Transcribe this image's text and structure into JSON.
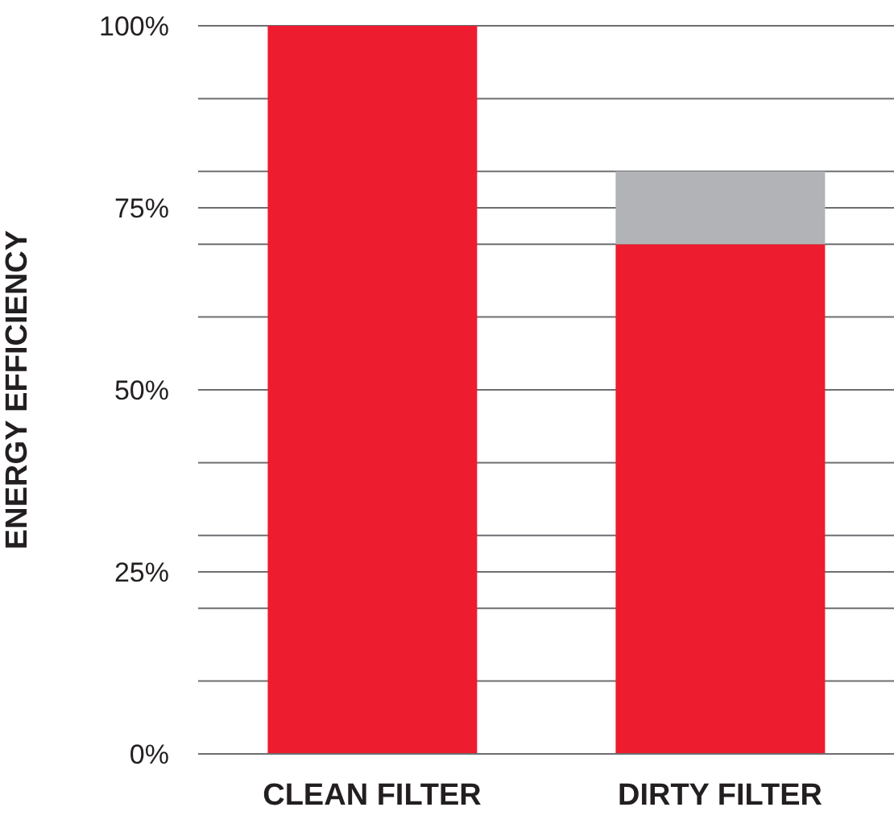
{
  "chart_data": {
    "type": "bar",
    "stacked": true,
    "ylabel": "ENERGY EFFICIENCY",
    "categories": [
      "CLEAN FILTER",
      "DIRTY FILTER"
    ],
    "series": [
      {
        "color": "#ed1c2e",
        "values": [
          100,
          70
        ]
      },
      {
        "color": "#b1b3b6",
        "values": [
          0,
          10
        ]
      }
    ],
    "ylim": [
      0,
      100
    ],
    "yticks": [
      {
        "value": 0,
        "label": "0%"
      },
      {
        "value": 10,
        "label": null
      },
      {
        "value": 20,
        "label": null
      },
      {
        "value": 25,
        "label": "25%"
      },
      {
        "value": 30,
        "label": null
      },
      {
        "value": 40,
        "label": null
      },
      {
        "value": 50,
        "label": "50%"
      },
      {
        "value": 60,
        "label": null
      },
      {
        "value": 70,
        "label": null
      },
      {
        "value": 75,
        "label": "75%"
      },
      {
        "value": 80,
        "label": null
      },
      {
        "value": 90,
        "label": null
      },
      {
        "value": 100,
        "label": "100%"
      }
    ],
    "grid": "y",
    "legend": false
  }
}
